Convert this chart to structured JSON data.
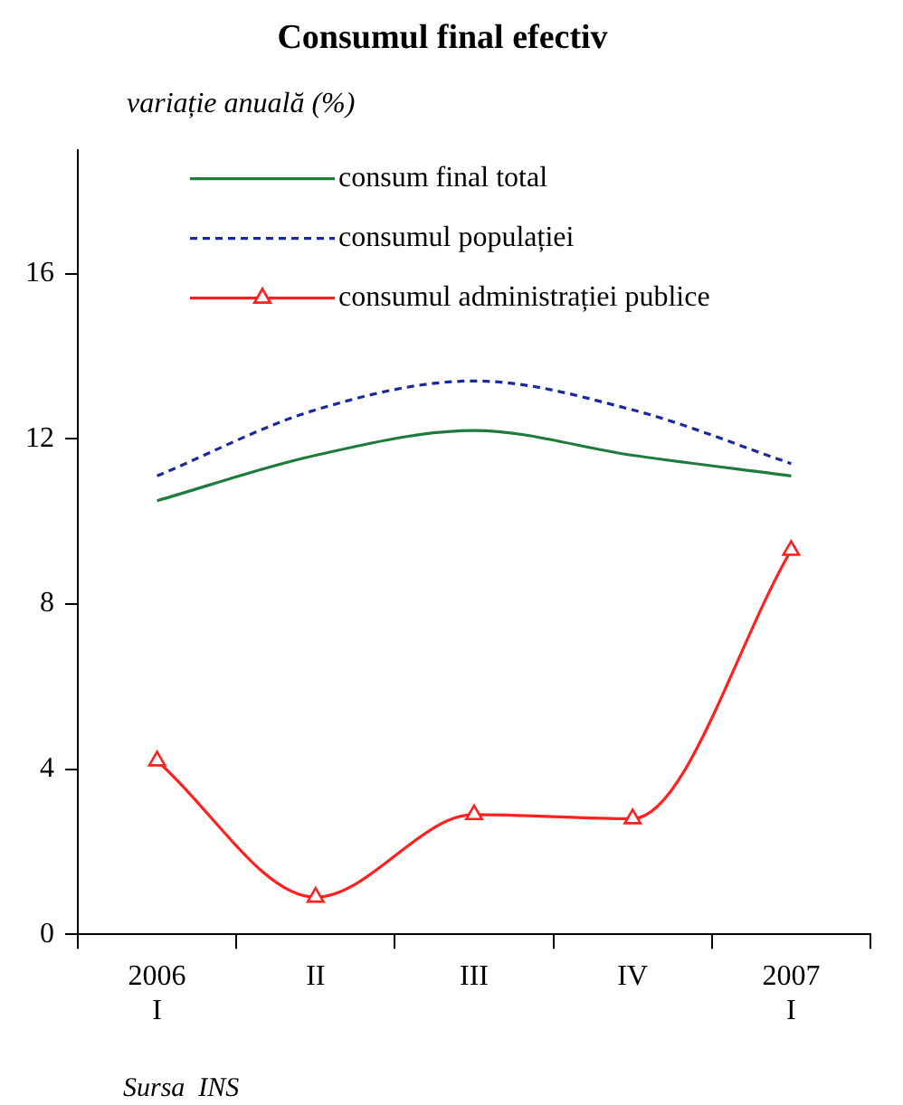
{
  "chart_data": {
    "type": "line",
    "title": "Consumul final efectiv",
    "ylabel": "variație anuală (%)",
    "categories": [
      "2006\nI",
      "II",
      "III",
      "IV",
      "2007\nI"
    ],
    "series": [
      {
        "name": "consum final total",
        "color": "#1e7b3c",
        "values": [
          10.5,
          11.6,
          12.2,
          11.6,
          11.1
        ],
        "marker": "none",
        "line_style": "solid"
      },
      {
        "name": "consumul populației",
        "color": "#1a2a9c",
        "values": [
          11.1,
          12.7,
          13.4,
          12.7,
          11.4
        ],
        "marker": "none",
        "line_style": "dashed"
      },
      {
        "name": "consumul administrației publice",
        "color": "#ff2020",
        "values": [
          4.2,
          0.9,
          2.9,
          2.8,
          9.3
        ],
        "marker": "triangle",
        "line_style": "solid"
      }
    ],
    "ylim": [
      0,
      19
    ],
    "yticks": [
      0,
      4,
      8,
      12,
      16
    ],
    "grid": false,
    "legend": "top left",
    "annotations": [
      "Sursa  INS"
    ]
  }
}
